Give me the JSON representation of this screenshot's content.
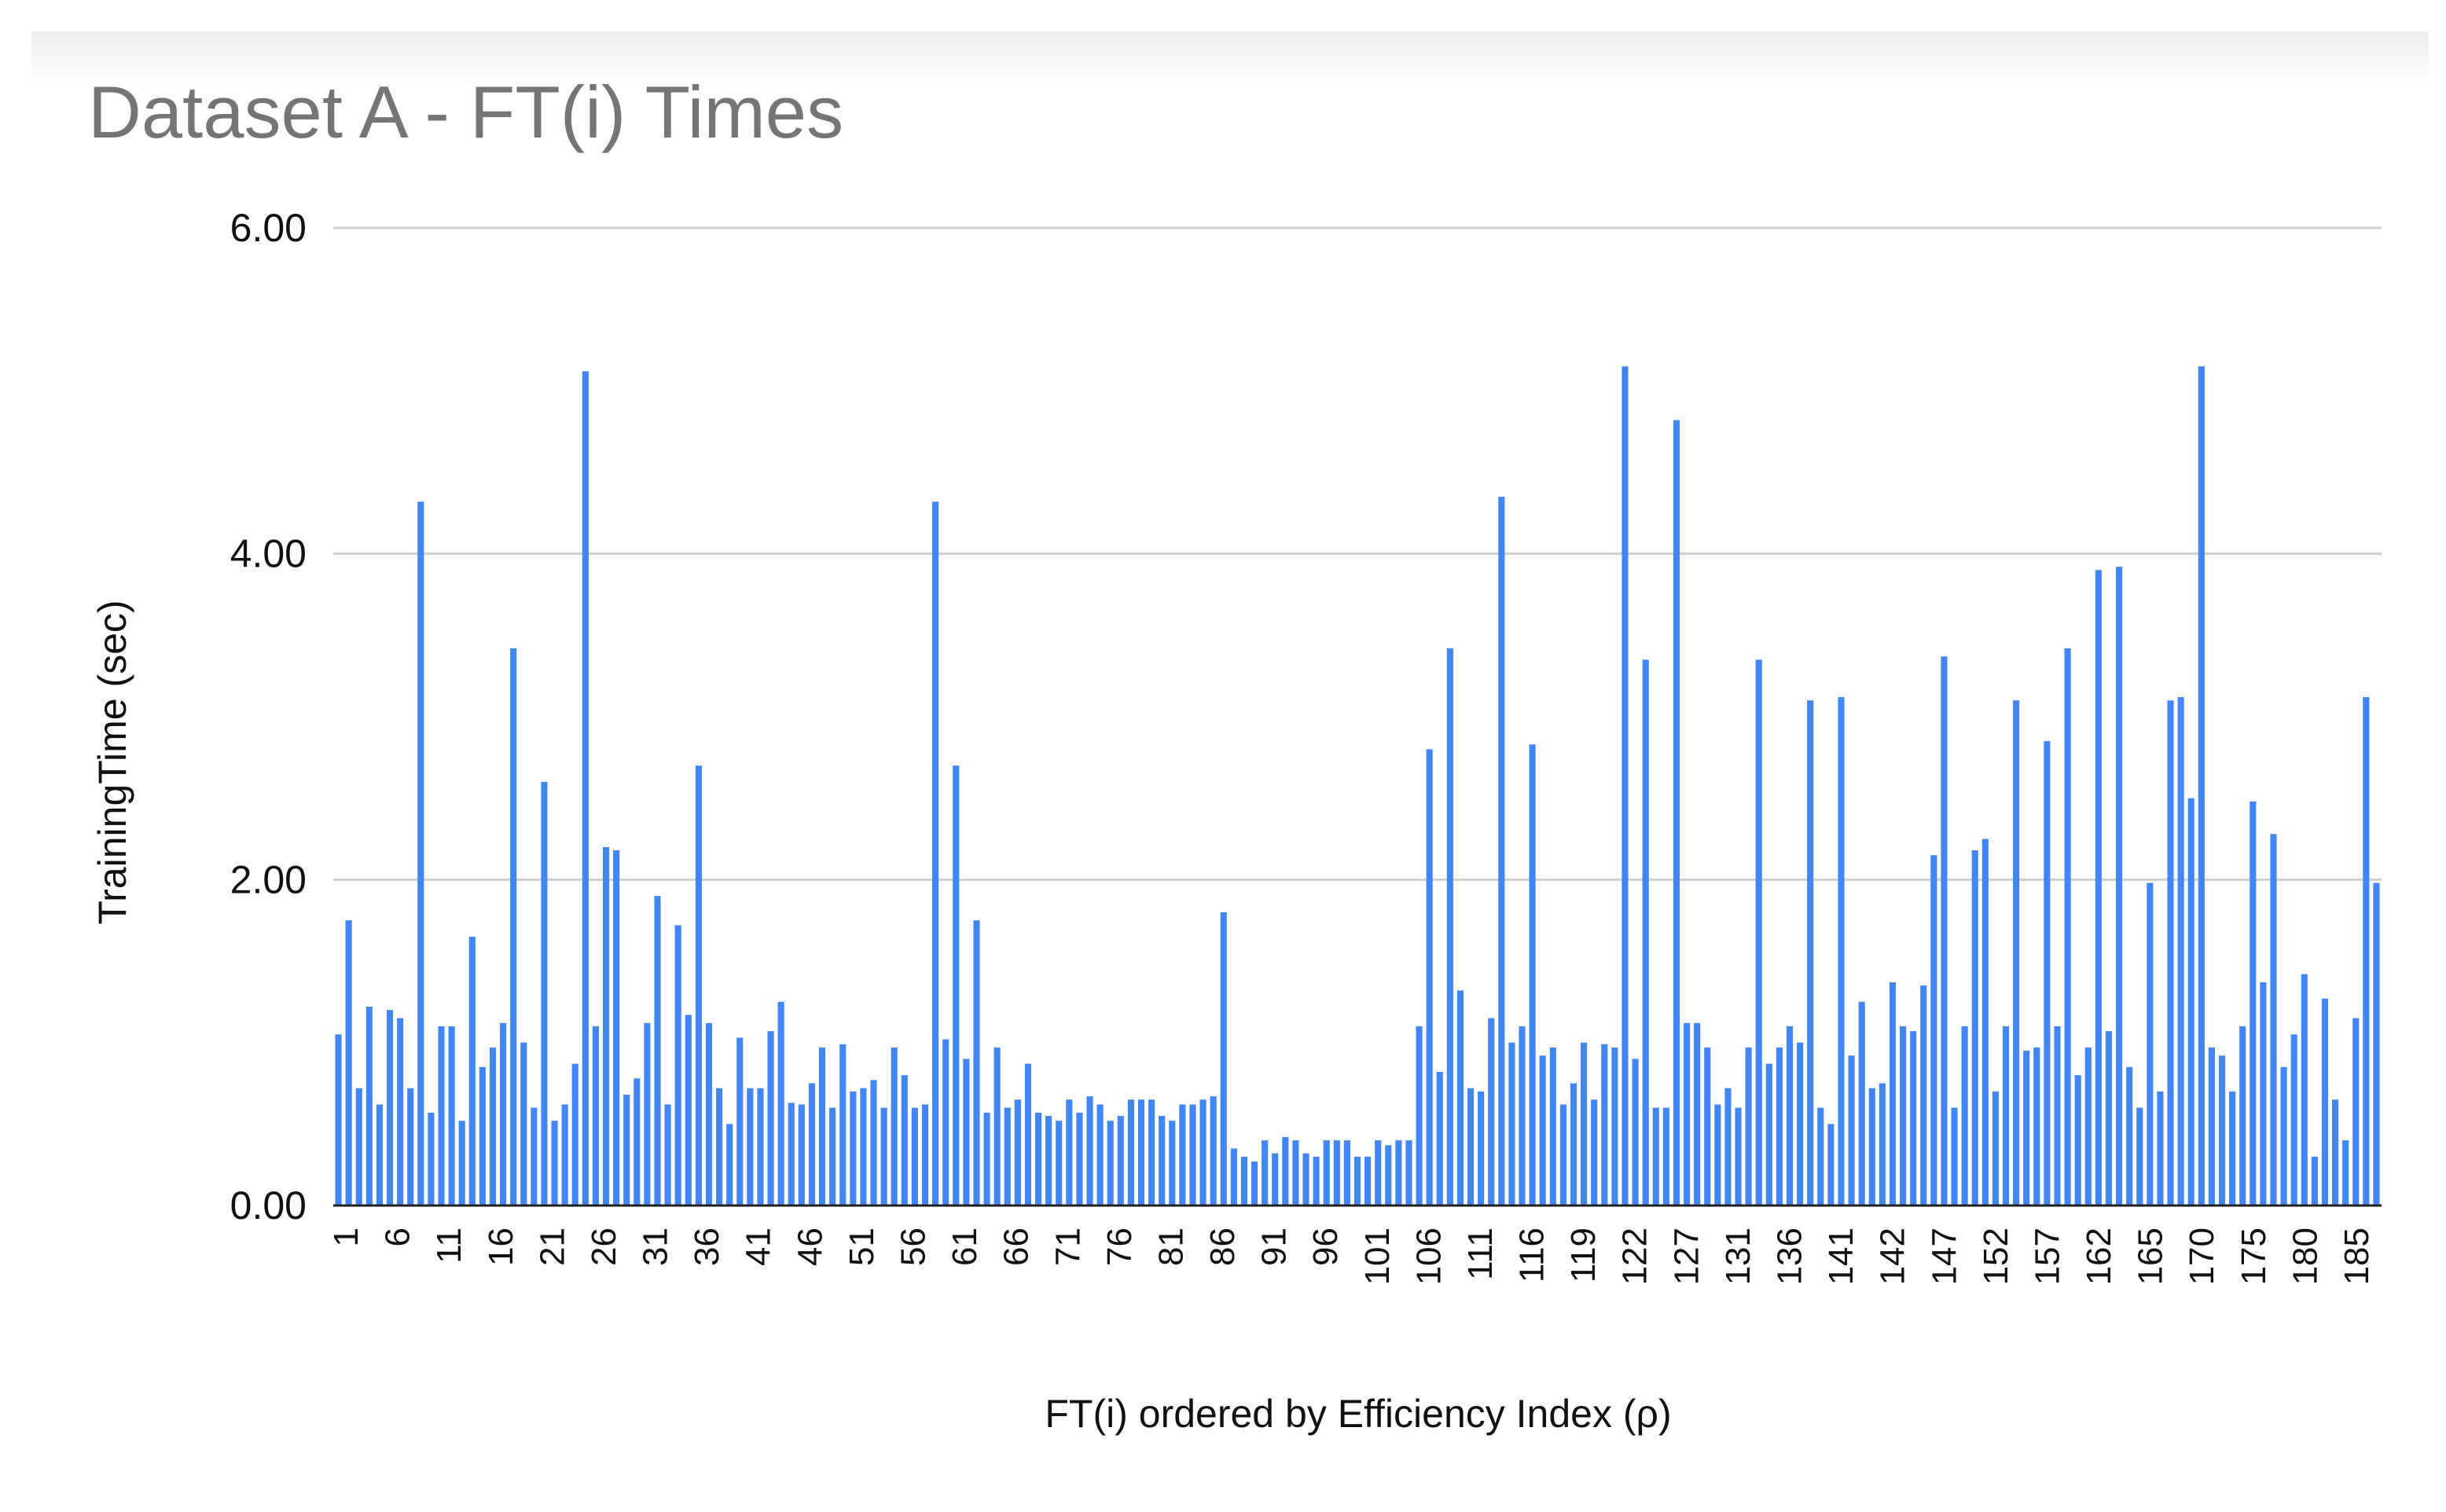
{
  "chart_data": {
    "type": "bar",
    "title": "Dataset A - FT(i) Times",
    "xlabel": "FT(i) ordered by Efficiency Index (ρ)",
    "ylabel": "TrainingTime (sec)",
    "ylim": [
      0,
      6
    ],
    "yticks": [
      "0.00",
      "2.00",
      "4.00",
      "6.00"
    ],
    "grid": true,
    "legend": "none",
    "color": "#4285f4",
    "x_tick_labels": [
      "1",
      "6",
      "11",
      "16",
      "21",
      "26",
      "31",
      "36",
      "41",
      "46",
      "51",
      "56",
      "61",
      "66",
      "71",
      "76",
      "81",
      "86",
      "91",
      "96",
      "101",
      "106",
      "111",
      "116",
      "119",
      "122",
      "127",
      "131",
      "136",
      "141",
      "142",
      "147",
      "152",
      "157",
      "162",
      "165",
      "170",
      "175",
      "180",
      "185"
    ],
    "values": [
      1.05,
      1.75,
      0.72,
      1.22,
      0.62,
      1.2,
      1.15,
      0.72,
      4.32,
      0.57,
      1.1,
      1.1,
      0.52,
      1.65,
      0.85,
      0.97,
      1.12,
      3.42,
      1.0,
      0.6,
      2.6,
      0.52,
      0.62,
      0.87,
      5.12,
      1.1,
      2.2,
      2.18,
      0.68,
      0.78,
      1.12,
      1.9,
      0.62,
      1.72,
      1.17,
      2.7,
      1.12,
      0.72,
      0.5,
      1.03,
      0.72,
      0.72,
      1.07,
      1.25,
      0.63,
      0.62,
      0.75,
      0.97,
      0.6,
      0.99,
      0.7,
      0.72,
      0.77,
      0.6,
      0.97,
      0.8,
      0.6,
      0.62,
      4.32,
      1.02,
      2.7,
      0.9,
      1.75,
      0.57,
      0.97,
      0.6,
      0.65,
      0.87,
      0.57,
      0.55,
      0.52,
      0.65,
      0.57,
      0.67,
      0.62,
      0.52,
      0.55,
      0.65,
      0.65,
      0.65,
      0.55,
      0.52,
      0.62,
      0.62,
      0.65,
      0.67,
      1.8,
      0.35,
      0.3,
      0.27,
      0.4,
      0.32,
      0.42,
      0.4,
      0.32,
      0.3,
      0.4,
      0.4,
      0.4,
      0.3,
      0.3,
      0.4,
      0.37,
      0.4,
      0.4,
      1.1,
      2.8,
      0.82,
      3.42,
      1.32,
      0.72,
      0.7,
      1.15,
      4.35,
      1.0,
      1.1,
      2.83,
      0.92,
      0.97,
      0.62,
      0.75,
      1.0,
      0.65,
      0.99,
      0.97,
      5.15,
      0.9,
      3.35,
      0.6,
      0.6,
      4.82,
      1.12,
      1.12,
      0.97,
      0.62,
      0.72,
      0.6,
      0.97,
      3.35,
      0.87,
      0.97,
      1.1,
      1.0,
      3.1,
      0.6,
      0.5,
      3.12,
      0.92,
      1.25,
      0.72,
      0.75,
      1.37,
      1.1,
      1.07,
      1.35,
      2.15,
      3.37,
      0.6,
      1.1,
      2.18,
      2.25,
      0.7,
      1.1,
      3.1,
      0.95,
      0.97,
      2.85,
      1.1,
      3.42,
      0.8,
      0.97,
      3.9,
      1.07,
      3.92,
      0.85,
      0.6,
      1.98,
      0.7,
      3.1,
      3.12,
      2.5,
      5.15,
      0.97,
      0.92,
      0.7,
      1.1,
      2.48,
      1.37,
      2.28,
      0.85,
      1.05,
      1.42,
      0.3,
      1.27,
      0.65,
      0.4,
      1.15,
      3.12,
      1.98
    ]
  }
}
